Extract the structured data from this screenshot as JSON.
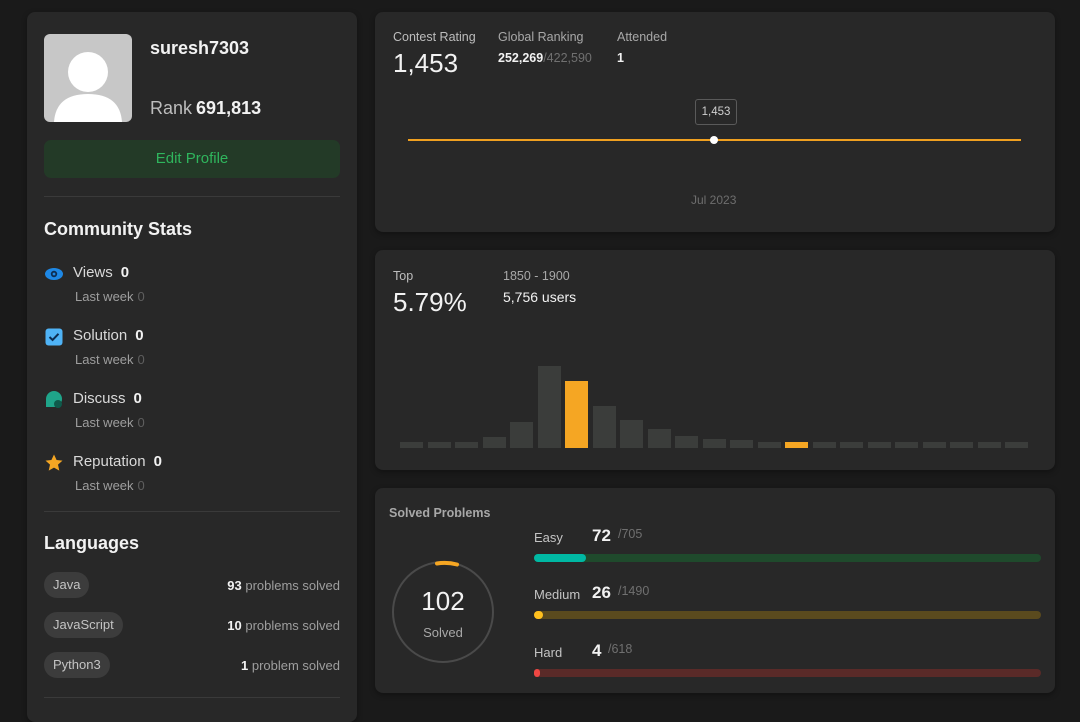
{
  "profile": {
    "username": "suresh7303",
    "rank_label": "Rank",
    "rank_value": "691,813",
    "edit_button": "Edit Profile",
    "avatar_icon": "user-avatar-placeholder"
  },
  "community": {
    "title": "Community Stats",
    "stats": [
      {
        "label": "Views",
        "value": "0",
        "sub_label": "Last week",
        "sub_value": "0",
        "icon": "eye-icon",
        "color": "#1e88e5"
      },
      {
        "label": "Solution",
        "value": "0",
        "sub_label": "Last week",
        "sub_value": "0",
        "icon": "check-square-icon",
        "color": "#4fb3f6"
      },
      {
        "label": "Discuss",
        "value": "0",
        "sub_label": "Last week",
        "sub_value": "0",
        "icon": "chat-bubble-icon",
        "color": "#1fa58a"
      },
      {
        "label": "Reputation",
        "value": "0",
        "sub_label": "Last week",
        "sub_value": "0",
        "icon": "star-icon",
        "color": "#f5a623"
      }
    ]
  },
  "languages": {
    "title": "Languages",
    "items": [
      {
        "name": "Java",
        "count": "93",
        "suffix": "problems solved"
      },
      {
        "name": "JavaScript",
        "count": "10",
        "suffix": "problems solved"
      },
      {
        "name": "Python3",
        "count": "1",
        "suffix": "problem solved"
      }
    ]
  },
  "contest": {
    "rating_label": "Contest Rating",
    "rating_value": "1,453",
    "global_label": "Global Ranking",
    "global_rank": "252,269",
    "global_total": "/422,590",
    "attended_label": "Attended",
    "attended_value": "1",
    "tooltip": "1,453",
    "axis_label": "Jul 2023",
    "line_color": "#f0a020"
  },
  "top": {
    "label": "Top",
    "percent": "5.79%",
    "range": "1850 - 1900",
    "users": "5,756 users",
    "chart_data": {
      "type": "bar",
      "values": [
        4,
        4,
        4,
        7,
        17,
        53,
        43,
        27,
        18,
        12,
        8,
        6,
        5,
        4,
        4,
        4,
        4,
        4,
        4,
        4,
        4,
        4,
        4
      ],
      "highlight": [
        6,
        14
      ],
      "ymax": 60,
      "bar_color": "#3b3d3b",
      "highlight_color": "#f5a623"
    }
  },
  "solved": {
    "title": "Solved Problems",
    "total": "102",
    "total_label": "Solved",
    "difficulties": [
      {
        "name": "Easy",
        "count": "72",
        "total": "/705",
        "fraction": 0.102,
        "color": "#00b8a3",
        "track": "#1f4a2c"
      },
      {
        "name": "Medium",
        "count": "26",
        "total": "/1490",
        "fraction": 0.017,
        "color": "#ffc01e",
        "track": "#5a4a1e"
      },
      {
        "name": "Hard",
        "count": "4",
        "total": "/618",
        "fraction": 0.006,
        "color": "#ef4743",
        "track": "#5a2a28"
      }
    ]
  }
}
